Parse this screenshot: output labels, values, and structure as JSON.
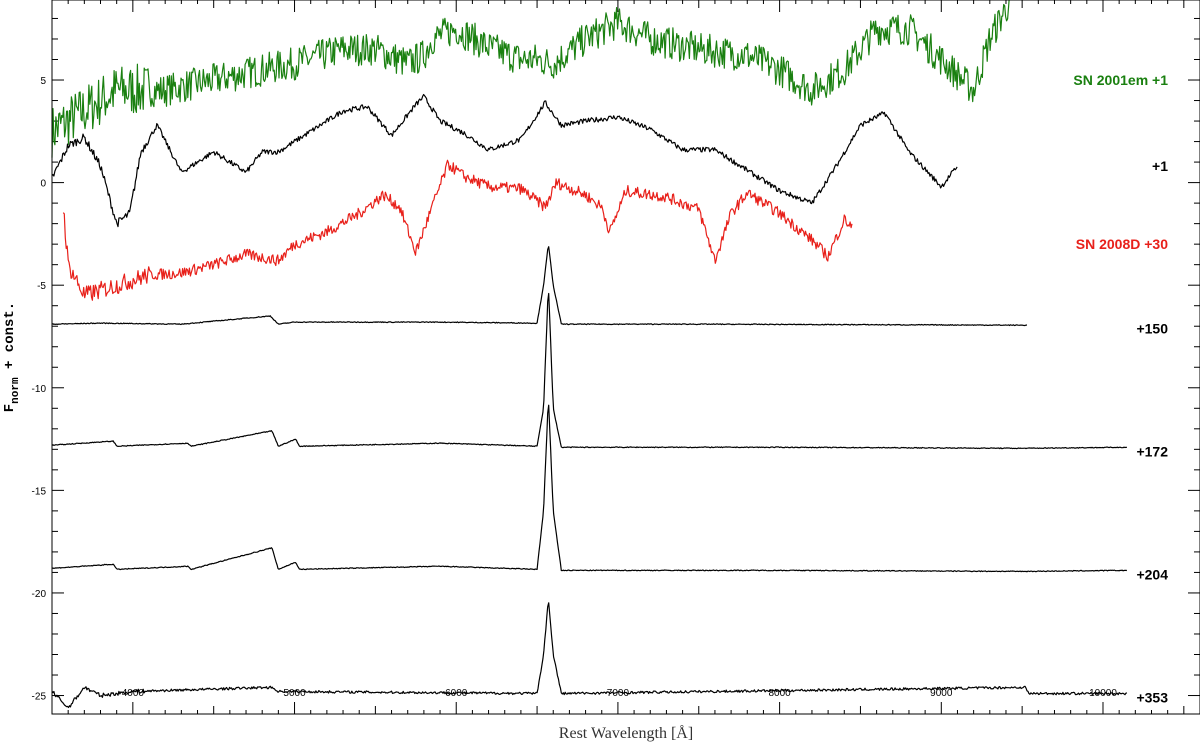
{
  "chart_data": {
    "type": "line",
    "xlabel": "Rest Wavelength [Å]",
    "ylabel_main": "F",
    "ylabel_sub": "norm",
    "ylabel_rest": " + const.",
    "xlim": [
      3500,
      10600
    ],
    "ylim": [
      -25.9,
      8.9
    ],
    "xticks": [
      4000,
      5000,
      6000,
      7000,
      8000,
      9000,
      10000
    ],
    "yticks": [
      5,
      0,
      -5,
      -10,
      -15,
      -20,
      -25
    ],
    "series": [
      {
        "name": "SN 2001em +1",
        "color": "#1a8010",
        "noise": 1.6,
        "label_y": 5,
        "points": [
          [
            3500,
            2.5
          ],
          [
            3700,
            3.5
          ],
          [
            3900,
            4.5
          ],
          [
            4200,
            4.5
          ],
          [
            4500,
            5.0
          ],
          [
            4800,
            5.5
          ],
          [
            5000,
            5.8
          ],
          [
            5300,
            6.5
          ],
          [
            5500,
            6.5
          ],
          [
            5700,
            5.8
          ],
          [
            5800,
            6.2
          ],
          [
            5850,
            7.0
          ],
          [
            6000,
            7.5
          ],
          [
            6200,
            6.6
          ],
          [
            6400,
            6.0
          ],
          [
            6500,
            6.0
          ],
          [
            6600,
            5.8
          ],
          [
            6800,
            7.0
          ],
          [
            7000,
            7.8
          ],
          [
            7200,
            7.0
          ],
          [
            7500,
            6.5
          ],
          [
            7800,
            6.2
          ],
          [
            8000,
            5.5
          ],
          [
            8200,
            4.5
          ],
          [
            8400,
            5.5
          ],
          [
            8600,
            7.5
          ],
          [
            8800,
            7.5
          ],
          [
            9000,
            6.0
          ],
          [
            9200,
            4.5
          ],
          [
            9300,
            7.0
          ],
          [
            9400,
            8.5
          ],
          [
            9440,
            9.0
          ]
        ]
      },
      {
        "name": "+1",
        "color": "#000000",
        "noise": 0.25,
        "label_y": 0.8,
        "points": [
          [
            3500,
            0.2
          ],
          [
            3600,
            1.8
          ],
          [
            3700,
            2.2
          ],
          [
            3800,
            0.8
          ],
          [
            3900,
            -2.0
          ],
          [
            3980,
            -1.5
          ],
          [
            4050,
            1.5
          ],
          [
            4150,
            2.8
          ],
          [
            4300,
            0.5
          ],
          [
            4500,
            1.5
          ],
          [
            4700,
            0.5
          ],
          [
            4800,
            1.5
          ],
          [
            4900,
            1.5
          ],
          [
            5100,
            2.5
          ],
          [
            5300,
            3.5
          ],
          [
            5450,
            3.7
          ],
          [
            5600,
            2.3
          ],
          [
            5750,
            3.8
          ],
          [
            5800,
            4.2
          ],
          [
            5900,
            3.0
          ],
          [
            6050,
            2.4
          ],
          [
            6200,
            1.6
          ],
          [
            6400,
            2.1
          ],
          [
            6550,
            3.9
          ],
          [
            6650,
            2.8
          ],
          [
            6800,
            3.0
          ],
          [
            7000,
            3.2
          ],
          [
            7200,
            2.6
          ],
          [
            7400,
            1.6
          ],
          [
            7600,
            1.6
          ],
          [
            7800,
            0.6
          ],
          [
            8000,
            -0.4
          ],
          [
            8200,
            -1.0
          ],
          [
            8350,
            0.8
          ],
          [
            8500,
            2.8
          ],
          [
            8650,
            3.4
          ],
          [
            8800,
            1.5
          ],
          [
            9000,
            -0.2
          ],
          [
            9100,
            0.8
          ]
        ]
      },
      {
        "name": "SN 2008D +30",
        "color": "#e8201a",
        "noise": 0.55,
        "label_y": -3,
        "points": [
          [
            3570,
            -1.2
          ],
          [
            3600,
            -4.0
          ],
          [
            3700,
            -5.5
          ],
          [
            3900,
            -5.0
          ],
          [
            4100,
            -4.5
          ],
          [
            4300,
            -4.4
          ],
          [
            4500,
            -4.0
          ],
          [
            4700,
            -3.5
          ],
          [
            4900,
            -3.8
          ],
          [
            5000,
            -3.0
          ],
          [
            5200,
            -2.4
          ],
          [
            5400,
            -1.5
          ],
          [
            5550,
            -0.6
          ],
          [
            5650,
            -1.2
          ],
          [
            5750,
            -3.4
          ],
          [
            5850,
            -1.2
          ],
          [
            5950,
            0.9
          ],
          [
            6050,
            0.3
          ],
          [
            6200,
            -0.2
          ],
          [
            6400,
            -0.3
          ],
          [
            6550,
            -1.2
          ],
          [
            6620,
            0.0
          ],
          [
            6800,
            -0.6
          ],
          [
            6900,
            -1.2
          ],
          [
            6950,
            -2.4
          ],
          [
            7050,
            -0.4
          ],
          [
            7300,
            -0.7
          ],
          [
            7500,
            -1.3
          ],
          [
            7600,
            -3.8
          ],
          [
            7700,
            -1.5
          ],
          [
            7800,
            -0.5
          ],
          [
            8000,
            -1.5
          ],
          [
            8200,
            -2.8
          ],
          [
            8300,
            -3.6
          ],
          [
            8400,
            -1.8
          ],
          [
            8450,
            -2.2
          ]
        ]
      },
      {
        "name": "+150",
        "color": "#000000",
        "noise": 0.04,
        "label_y": -7.1,
        "points": [
          [
            3500,
            -6.9
          ],
          [
            3800,
            -6.85
          ],
          [
            4300,
            -6.9
          ],
          [
            4850,
            -6.5
          ],
          [
            4900,
            -6.9
          ],
          [
            5000,
            -6.8
          ],
          [
            5900,
            -6.8
          ],
          [
            6500,
            -6.85
          ],
          [
            6540,
            -5.0
          ],
          [
            6570,
            -3.0
          ],
          [
            6600,
            -5.0
          ],
          [
            6650,
            -6.9
          ],
          [
            7500,
            -6.9
          ],
          [
            9530,
            -6.95
          ]
        ]
      },
      {
        "name": "+172",
        "color": "#000000",
        "noise": 0.04,
        "label_y": -13.1,
        "points": [
          [
            3500,
            -12.8
          ],
          [
            3880,
            -12.6
          ],
          [
            3900,
            -12.85
          ],
          [
            4340,
            -12.7
          ],
          [
            4360,
            -12.85
          ],
          [
            4860,
            -12.1
          ],
          [
            4900,
            -12.85
          ],
          [
            5007,
            -12.5
          ],
          [
            5030,
            -12.85
          ],
          [
            5900,
            -12.7
          ],
          [
            6500,
            -12.85
          ],
          [
            6540,
            -11.0
          ],
          [
            6570,
            -5.0
          ],
          [
            6600,
            -11.0
          ],
          [
            6650,
            -12.9
          ],
          [
            8000,
            -12.9
          ],
          [
            9500,
            -12.95
          ],
          [
            10150,
            -12.9
          ]
        ]
      },
      {
        "name": "+204",
        "color": "#000000",
        "noise": 0.04,
        "label_y": -19.1,
        "points": [
          [
            3500,
            -18.8
          ],
          [
            3880,
            -18.6
          ],
          [
            3900,
            -18.85
          ],
          [
            4340,
            -18.7
          ],
          [
            4360,
            -18.85
          ],
          [
            4860,
            -17.8
          ],
          [
            4900,
            -18.85
          ],
          [
            5007,
            -18.5
          ],
          [
            5030,
            -18.85
          ],
          [
            5900,
            -18.7
          ],
          [
            6500,
            -18.85
          ],
          [
            6540,
            -16.0
          ],
          [
            6570,
            -10.5
          ],
          [
            6600,
            -16.0
          ],
          [
            6650,
            -18.9
          ],
          [
            8000,
            -18.9
          ],
          [
            9500,
            -18.95
          ],
          [
            10150,
            -18.9
          ]
        ]
      },
      {
        "name": "+353",
        "color": "#000000",
        "noise": 0.12,
        "label_y": -25.1,
        "points": [
          [
            3500,
            -24.8
          ],
          [
            3600,
            -25.6
          ],
          [
            3700,
            -24.6
          ],
          [
            3800,
            -25.0
          ],
          [
            4000,
            -24.8
          ],
          [
            4860,
            -24.6
          ],
          [
            4900,
            -24.8
          ],
          [
            6500,
            -24.9
          ],
          [
            6540,
            -23.0
          ],
          [
            6570,
            -20.3
          ],
          [
            6600,
            -23.0
          ],
          [
            6650,
            -24.9
          ],
          [
            9520,
            -24.6
          ],
          [
            9540,
            -24.9
          ],
          [
            10150,
            -24.9
          ]
        ]
      }
    ]
  }
}
